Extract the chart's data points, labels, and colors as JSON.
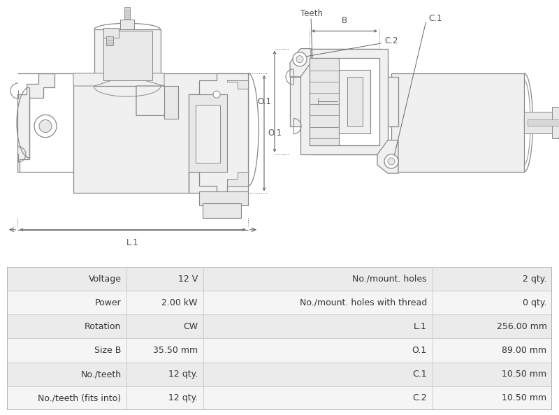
{
  "bg_color": "#ffffff",
  "table_rows": [
    [
      "Voltage",
      "12 V",
      "No./mount. holes",
      "2 qty."
    ],
    [
      "Power",
      "2.00 kW",
      "No./mount. holes with thread",
      "0 qty."
    ],
    [
      "Rotation",
      "CW",
      "L.1",
      "256.00 mm"
    ],
    [
      "Size B",
      "35.50 mm",
      "O.1",
      "89.00 mm"
    ],
    [
      "No./teeth",
      "12 qty.",
      "C.1",
      "10.50 mm"
    ],
    [
      "No./teeth (fits into)",
      "12 qty.",
      "C.2",
      "10.50 mm"
    ]
  ],
  "table_row_bg": [
    "#ebebeb",
    "#f5f5f5"
  ],
  "line_color": "#888888",
  "dim_color": "#666666",
  "label_color": "#555555",
  "fill_main": "#f0f0f0",
  "fill_mid": "#e8e8e8",
  "fill_dark": "#d8d8d8",
  "fill_white": "#ffffff"
}
